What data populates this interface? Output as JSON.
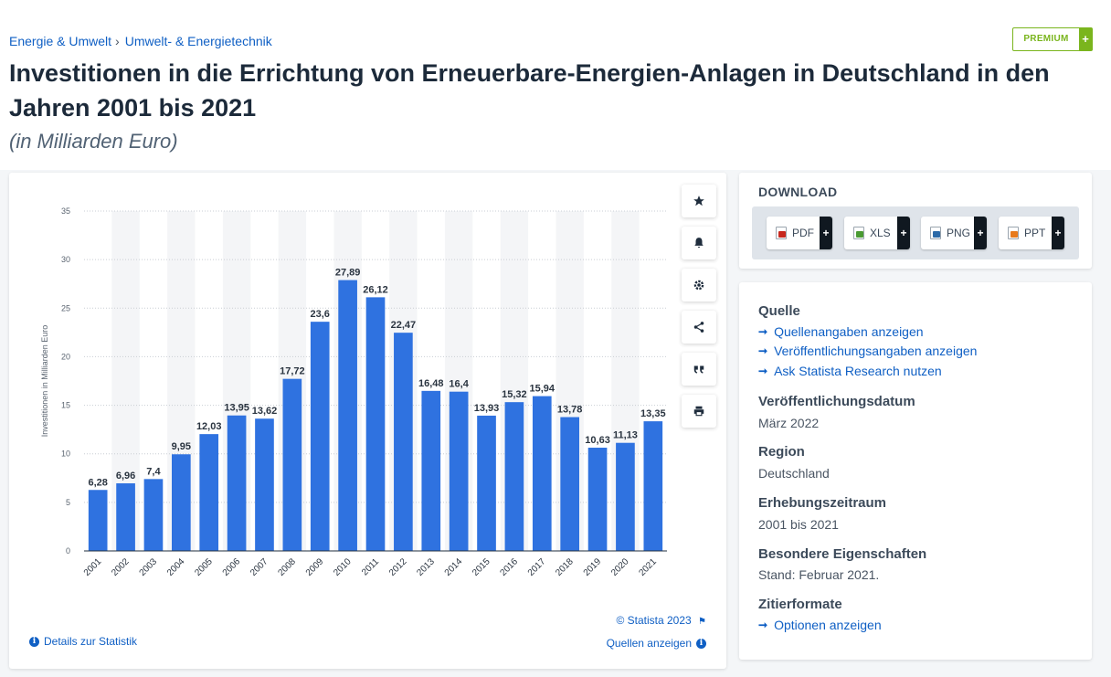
{
  "breadcrumb": [
    "Energie & Umwelt",
    "Umwelt- & Energietechnik"
  ],
  "breadcrumb_sep": "›",
  "premium": {
    "label": "PREMIUM",
    "plus": "+"
  },
  "title": "Investitionen in die Errichtung von Erneuerbare-Energien-Anlagen in Deutschland in den Jahren 2001 bis 2021",
  "subtitle": "(in Milliarden Euro)",
  "chart_data": {
    "type": "bar",
    "categories": [
      "2001",
      "2002",
      "2003",
      "2004",
      "2005",
      "2006",
      "2007",
      "2008",
      "2009",
      "2010",
      "2011",
      "2012",
      "2013",
      "2014",
      "2015",
      "2016",
      "2017",
      "2018",
      "2019",
      "2020",
      "2021"
    ],
    "values": [
      6.28,
      6.96,
      7.4,
      9.95,
      12.03,
      13.95,
      13.62,
      17.72,
      23.6,
      27.89,
      26.12,
      22.47,
      16.48,
      16.4,
      13.93,
      15.32,
      15.94,
      13.78,
      10.63,
      11.13,
      13.35
    ],
    "value_labels": [
      "6,28",
      "6,96",
      "7,4",
      "9,95",
      "12,03",
      "13,95",
      "13,62",
      "17,72",
      "23,6",
      "27,89",
      "26,12",
      "22,47",
      "16,48",
      "16,4",
      "13,93",
      "15,32",
      "15,94",
      "13,78",
      "10,63",
      "11,13",
      "13,35"
    ],
    "ylabel": "Investitionen in Milliarden Euro",
    "xlabel": "",
    "yticks": [
      0,
      5,
      10,
      15,
      20,
      25,
      30,
      35
    ],
    "ylim": [
      0,
      35
    ],
    "grid": true,
    "bar_color": "#2f72e0"
  },
  "chart_footer": {
    "copyright": "© Statista 2023",
    "details": "Details zur Statistik",
    "sources": "Quellen anzeigen"
  },
  "tools": [
    "star-icon",
    "bell-icon",
    "gear-icon",
    "share-icon",
    "quote-icon",
    "print-icon"
  ],
  "download": {
    "title": "DOWNLOAD",
    "buttons": [
      {
        "label": "PDF",
        "color": "#c8281e"
      },
      {
        "label": "XLS",
        "color": "#4a9a32"
      },
      {
        "label": "PNG",
        "color": "#2c6aa8"
      },
      {
        "label": "PPT",
        "color": "#e87a1c"
      }
    ],
    "plus": "+"
  },
  "info": {
    "quelle": {
      "heading": "Quelle",
      "links": [
        "Quellenangaben anzeigen",
        "Veröffentlichungsangaben anzeigen",
        "Ask Statista Research nutzen"
      ]
    },
    "veroeffentlichung": {
      "heading": "Veröffentlichungsdatum",
      "value": "März 2022"
    },
    "region": {
      "heading": "Region",
      "value": "Deutschland"
    },
    "erhebung": {
      "heading": "Erhebungszeitraum",
      "value": "2001 bis 2021"
    },
    "eigenschaften": {
      "heading": "Besondere Eigenschaften",
      "value": "Stand: Februar 2021."
    },
    "zitier": {
      "heading": "Zitierformate",
      "link": "Optionen anzeigen"
    }
  }
}
